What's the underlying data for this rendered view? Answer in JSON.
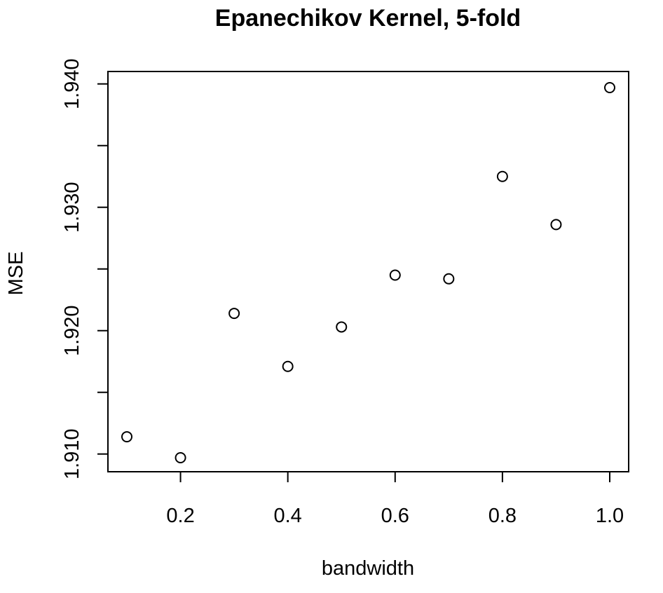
{
  "chart_data": {
    "type": "scatter",
    "title": "Epanechikov Kernel, 5-fold",
    "xlabel": "bandwidth",
    "ylabel": "MSE",
    "x": [
      0.1,
      0.2,
      0.3,
      0.4,
      0.5,
      0.6,
      0.7,
      0.8,
      0.9,
      1.0
    ],
    "y": [
      1.9114,
      1.9097,
      1.9214,
      1.9171,
      1.9203,
      1.9245,
      1.9242,
      1.9325,
      1.9286,
      1.9397
    ],
    "xlim": [
      0.1,
      1.0
    ],
    "ylim": [
      1.9097,
      1.9397
    ],
    "x_ticks": [
      0.2,
      0.4,
      0.6,
      0.8,
      1.0
    ],
    "x_tick_labels": [
      "0.2",
      "0.4",
      "0.6",
      "0.8",
      "1.0"
    ],
    "y_ticks": [
      1.91,
      1.915,
      1.92,
      1.925,
      1.93,
      1.935,
      1.94
    ],
    "y_tick_labels": [
      "1.910",
      "",
      "1.920",
      "",
      "1.930",
      "",
      "1.940"
    ],
    "grid": false,
    "legend": "none",
    "marker": "open-circle",
    "colors": {
      "axis": "#000000",
      "point_stroke": "#000000",
      "point_fill": "#ffffff",
      "background": "#ffffff"
    }
  }
}
